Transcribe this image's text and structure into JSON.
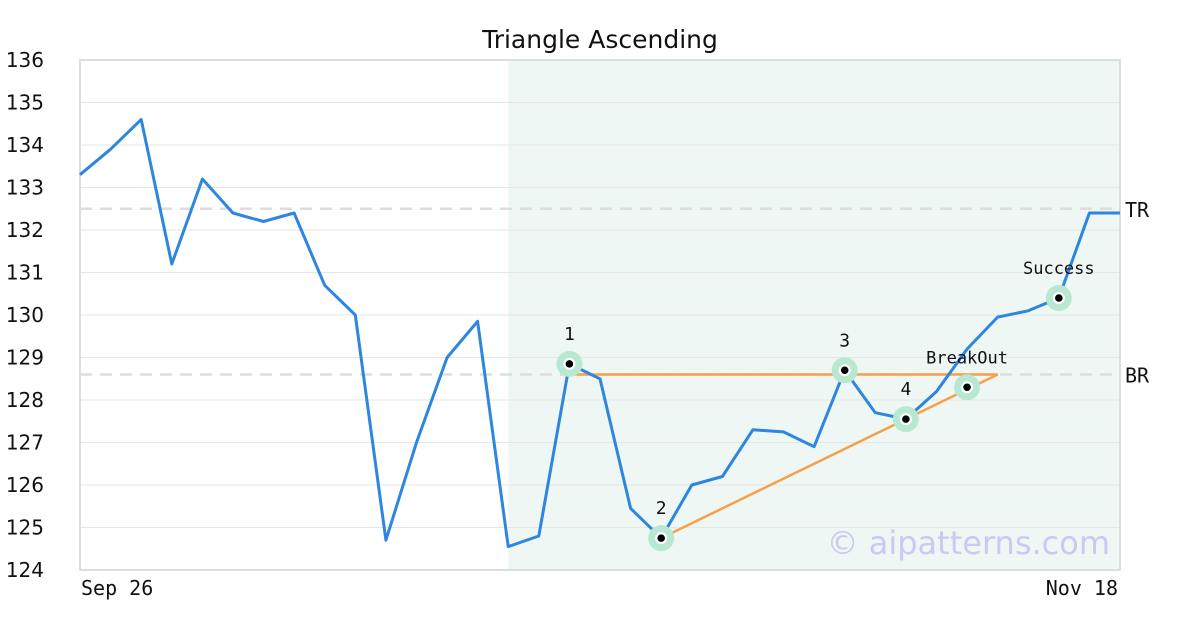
{
  "chart_data": {
    "type": "line",
    "title": "Triangle Ascending",
    "ylim": [
      124,
      136
    ],
    "yticks": [
      "124",
      "125",
      "126",
      "127",
      "128",
      "129",
      "130",
      "131",
      "132",
      "133",
      "134",
      "135",
      "136"
    ],
    "xticks": [
      "Sep 26",
      "Nov 18"
    ],
    "grid": true,
    "series": [
      {
        "color": "#2e86de",
        "values": [
          133.3,
          133.9,
          134.6,
          131.2,
          133.2,
          132.4,
          132.2,
          132.4,
          130.7,
          130.0,
          124.7,
          127.0,
          129.0,
          129.85,
          124.55,
          124.8,
          128.85,
          128.5,
          125.45,
          124.75,
          126.0,
          126.2,
          127.3,
          127.25,
          126.9,
          128.7,
          127.7,
          127.55,
          128.2,
          129.2,
          129.95,
          130.1,
          130.4,
          132.4,
          132.4
        ]
      }
    ],
    "shaded_region": {
      "start_index": 14,
      "end_index": 34,
      "color": "#eef7f3"
    },
    "levels": [
      {
        "label": "TR",
        "value": 132.5
      },
      {
        "label": "BR",
        "value": 128.6
      }
    ],
    "pattern_lines": {
      "color": "#f5a04a",
      "resistance": {
        "from_index": 16,
        "to_index": 30,
        "value": 128.6
      },
      "support": {
        "from_index": 19,
        "from_value": 124.75,
        "to_index": 30,
        "to_value": 128.6
      }
    },
    "points": [
      {
        "label": "1",
        "index": 16,
        "value": 128.85
      },
      {
        "label": "2",
        "index": 19,
        "value": 124.75
      },
      {
        "label": "3",
        "index": 25,
        "value": 128.7
      },
      {
        "label": "4",
        "index": 27,
        "value": 127.55
      }
    ],
    "annotations": [
      {
        "label": "BreakOut",
        "index": 29,
        "value": 128.3
      },
      {
        "label": "Success",
        "index": 32,
        "value": 130.4
      }
    ],
    "marker_halo_color": "#b9e8d2",
    "watermark": "© aipatterns.com"
  }
}
